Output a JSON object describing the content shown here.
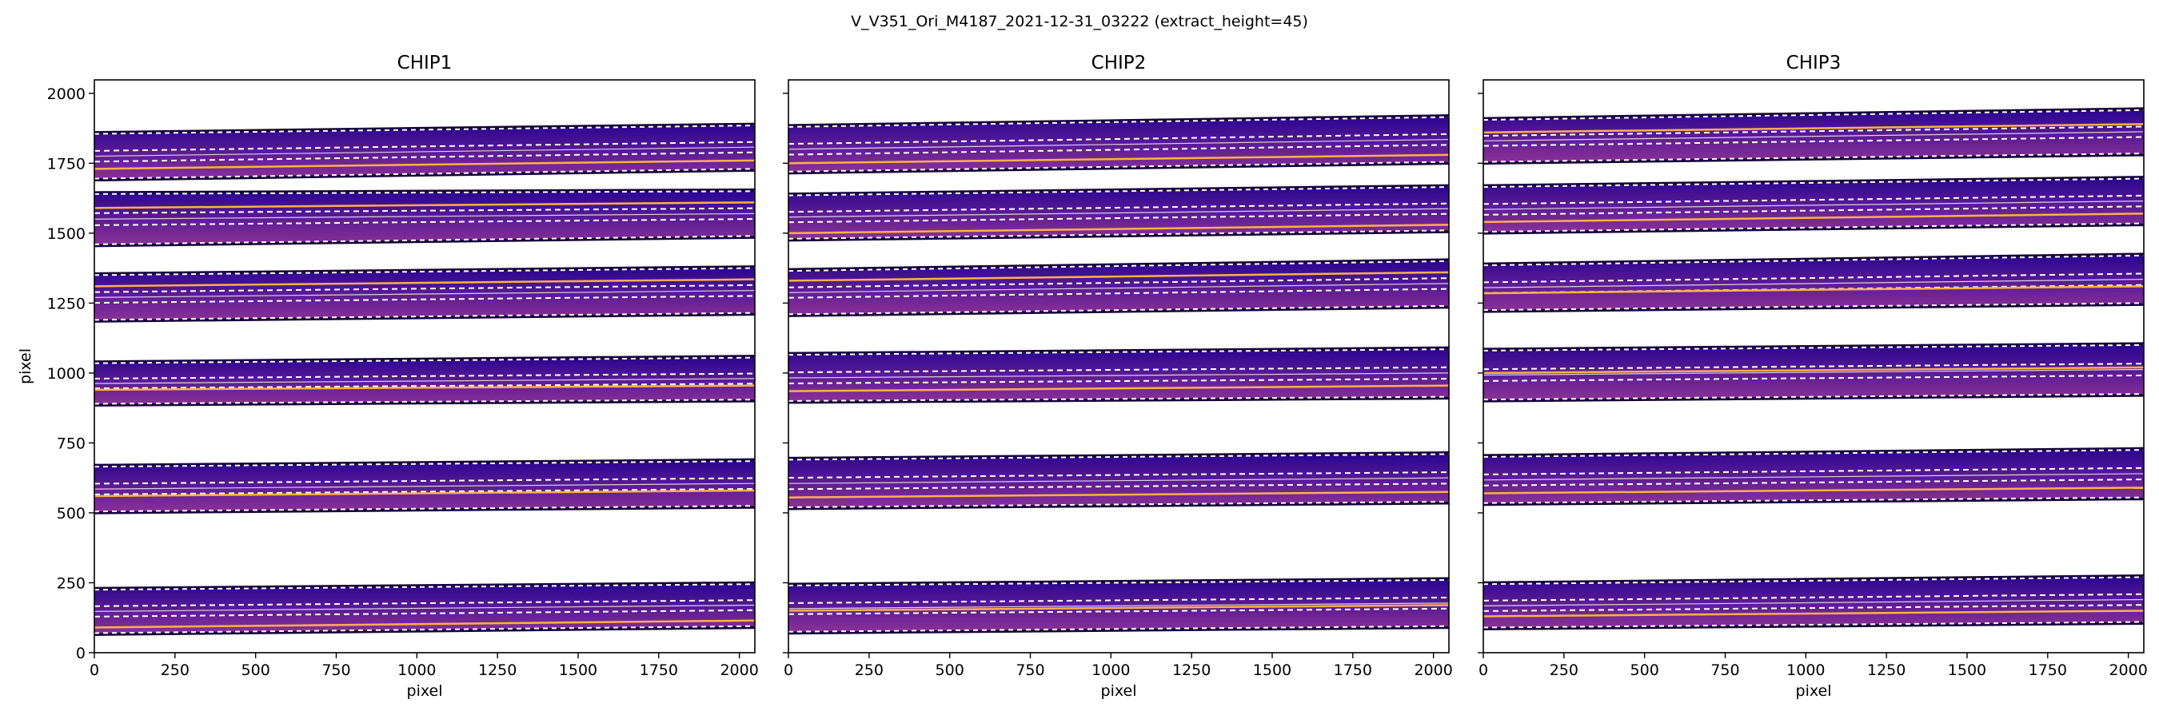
{
  "figure": {
    "suptitle": "V_V351_Ori_M4187_2021-12-31_03222  (extract_height=45)"
  },
  "chart_data": [
    {
      "type": "heatmap",
      "title": "CHIP1",
      "xlabel": "pixel",
      "ylabel": "pixel",
      "xlim": [
        0,
        2048
      ],
      "ylim": [
        0,
        2048
      ],
      "xticks": [
        0,
        250,
        500,
        750,
        1000,
        1250,
        1500,
        1750,
        2000
      ],
      "yticks": [
        0,
        250,
        500,
        750,
        1000,
        1250,
        1500,
        1750,
        2000
      ],
      "orders": [
        {
          "lower": [
            70,
            95
          ],
          "upper": [
            225,
            245
          ],
          "trace": [
            90,
            115
          ]
        },
        {
          "lower": [
            505,
            525
          ],
          "upper": [
            665,
            685
          ],
          "trace": [
            560,
            580
          ]
        },
        {
          "lower": [
            890,
            905
          ],
          "upper": [
            1035,
            1055
          ],
          "trace": [
            940,
            955
          ]
        },
        {
          "lower": [
            1190,
            1215
          ],
          "upper": [
            1350,
            1375
          ],
          "trace": [
            1310,
            1335
          ]
        },
        {
          "lower": [
            1460,
            1490
          ],
          "upper": [
            1640,
            1650
          ],
          "trace": [
            1590,
            1610
          ]
        },
        {
          "lower": [
            1695,
            1730
          ],
          "upper": [
            1855,
            1885
          ],
          "trace": [
            1730,
            1760
          ]
        }
      ]
    },
    {
      "type": "heatmap",
      "title": "CHIP2",
      "xlabel": "pixel",
      "ylabel": "",
      "xlim": [
        0,
        2048
      ],
      "ylim": [
        0,
        2048
      ],
      "xticks": [
        0,
        250,
        500,
        750,
        1000,
        1250,
        1500,
        1750,
        2000
      ],
      "yticks": [
        0,
        250,
        500,
        750,
        1000,
        1250,
        1500,
        1750,
        2000
      ],
      "orders": [
        {
          "lower": [
            75,
            95
          ],
          "upper": [
            240,
            260
          ],
          "trace": [
            150,
            170
          ]
        },
        {
          "lower": [
            520,
            540
          ],
          "upper": [
            690,
            710
          ],
          "trace": [
            555,
            575
          ]
        },
        {
          "lower": [
            900,
            915
          ],
          "upper": [
            1065,
            1085
          ],
          "trace": [
            935,
            955
          ]
        },
        {
          "lower": [
            1210,
            1240
          ],
          "upper": [
            1365,
            1400
          ],
          "trace": [
            1330,
            1360
          ]
        },
        {
          "lower": [
            1480,
            1510
          ],
          "upper": [
            1635,
            1665
          ],
          "trace": [
            1500,
            1530
          ]
        },
        {
          "lower": [
            1720,
            1755
          ],
          "upper": [
            1880,
            1915
          ],
          "trace": [
            1750,
            1780
          ]
        }
      ]
    },
    {
      "type": "heatmap",
      "title": "CHIP3",
      "xlabel": "pixel",
      "ylabel": "",
      "xlim": [
        0,
        2048
      ],
      "ylim": [
        0,
        2048
      ],
      "xticks": [
        0,
        250,
        500,
        750,
        1000,
        1250,
        1500,
        1750,
        2000
      ],
      "yticks": [
        0,
        250,
        500,
        750,
        1000,
        1250,
        1500,
        1750,
        2000
      ],
      "orders": [
        {
          "lower": [
            90,
            110
          ],
          "upper": [
            245,
            270
          ],
          "trace": [
            130,
            150
          ]
        },
        {
          "lower": [
            535,
            555
          ],
          "upper": [
            700,
            725
          ],
          "trace": [
            570,
            590
          ]
        },
        {
          "lower": [
            905,
            925
          ],
          "upper": [
            1080,
            1100
          ],
          "trace": [
            1000,
            1020
          ]
        },
        {
          "lower": [
            1225,
            1250
          ],
          "upper": [
            1385,
            1420
          ],
          "trace": [
            1285,
            1310
          ]
        },
        {
          "lower": [
            1505,
            1535
          ],
          "upper": [
            1665,
            1695
          ],
          "trace": [
            1540,
            1570
          ]
        },
        {
          "lower": [
            1755,
            1785
          ],
          "upper": [
            1905,
            1940
          ],
          "trace": [
            1860,
            1890
          ]
        }
      ]
    }
  ],
  "colors": {
    "frame_dark": "#160338",
    "band_top": "#2a0592",
    "band_bottom": "#8a3197",
    "trace": "#fdb14a",
    "edge": "#ffffff",
    "background": "#ffffff"
  }
}
